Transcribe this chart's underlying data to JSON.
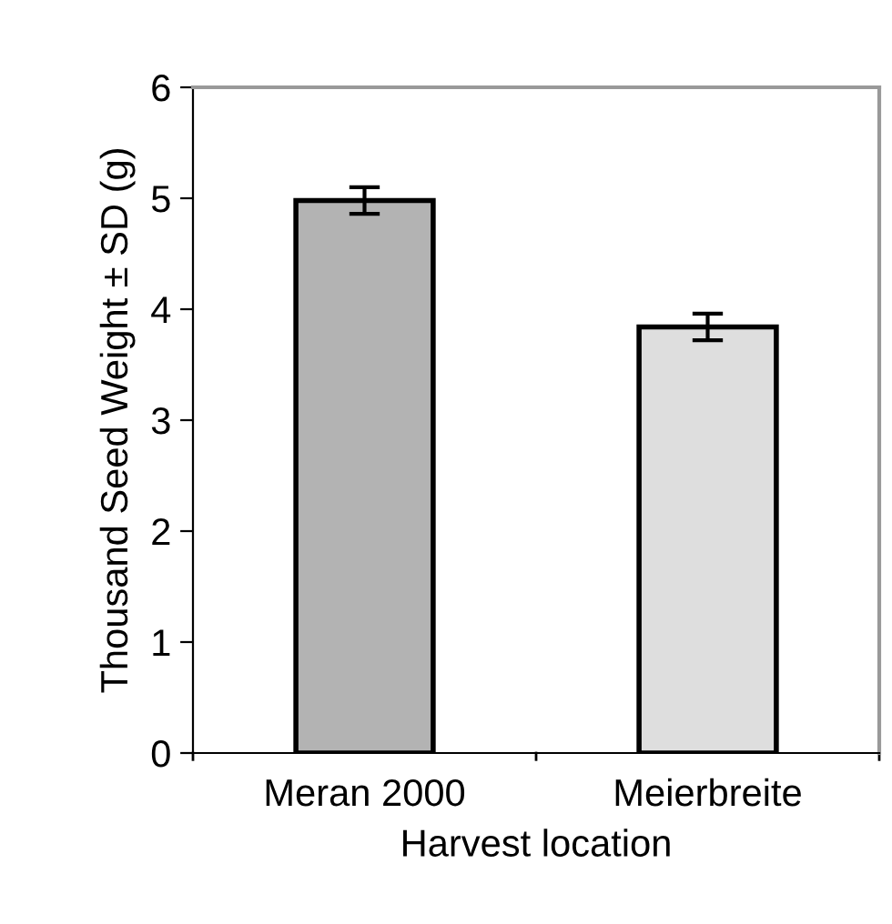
{
  "chart_data": {
    "type": "bar",
    "xlabel": "Harvest location",
    "ylabel": "Thousand Seed Weight ± SD (g)",
    "categories": [
      "Meran 2000",
      "Meierbreite"
    ],
    "values": [
      4.98,
      3.84
    ],
    "errors": [
      0.12,
      0.12
    ],
    "colors": [
      "#b3b3b3",
      "#dedede"
    ],
    "ylim": [
      0,
      6
    ],
    "yticks": [
      0,
      1,
      2,
      3,
      4,
      5,
      6
    ],
    "grid": false,
    "legend": false
  }
}
